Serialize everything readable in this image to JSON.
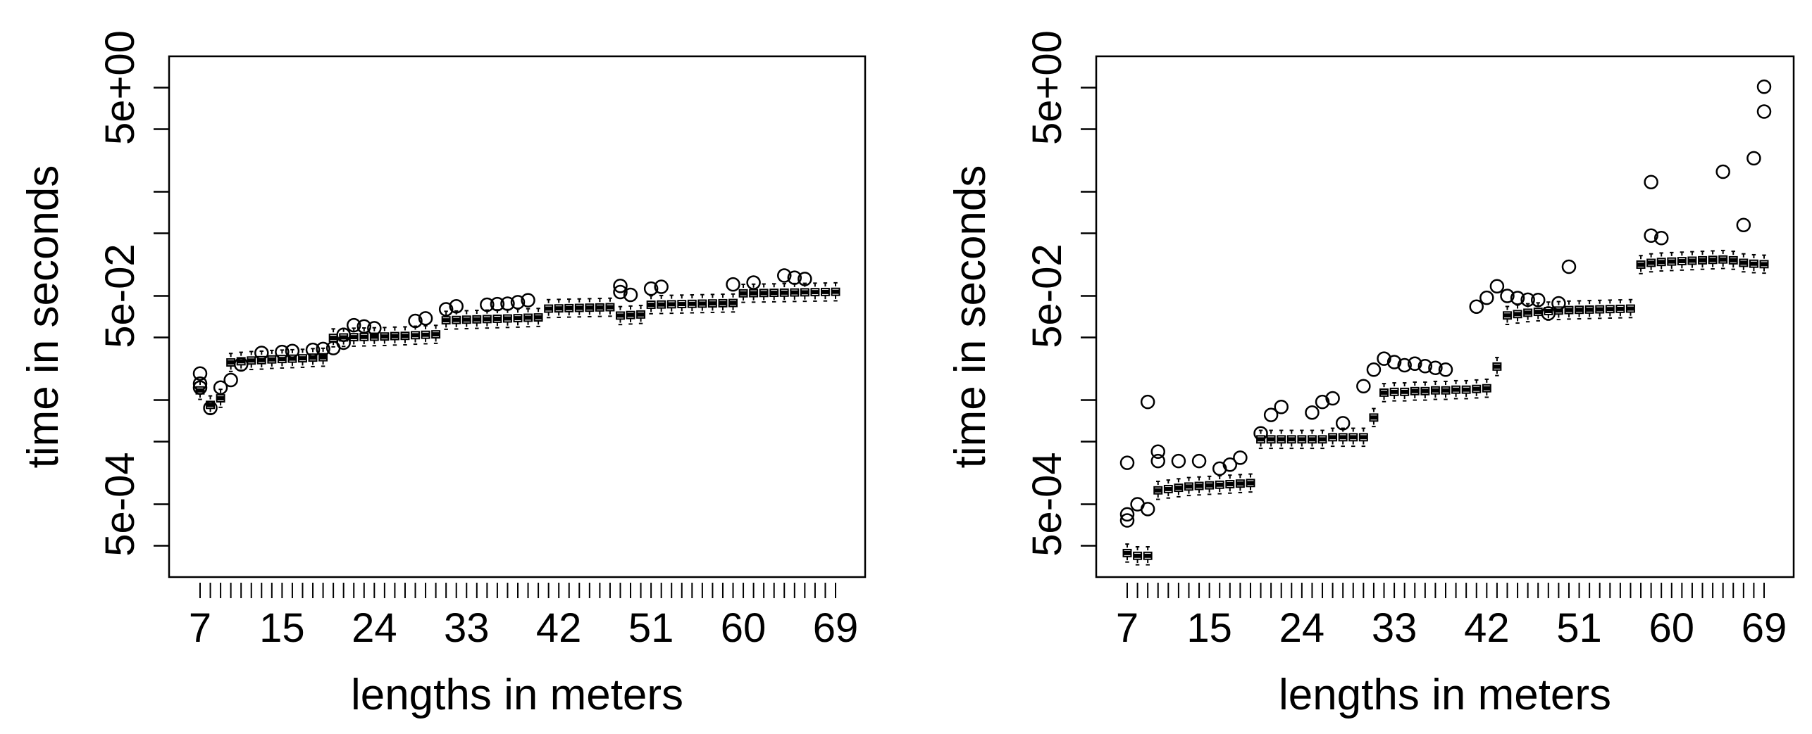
{
  "chart_data": [
    {
      "type": "boxplot",
      "xlabel": "lengths in meters",
      "ylabel": "time in seconds",
      "y_scale": "log10",
      "ylim": [
        0.0001,
        10
      ],
      "x_categories": [
        7,
        8,
        9,
        10,
        11,
        12,
        13,
        14,
        15,
        16,
        17,
        18,
        19,
        20,
        21,
        22,
        23,
        24,
        25,
        26,
        27,
        28,
        29,
        30,
        31,
        32,
        33,
        34,
        35,
        36,
        37,
        38,
        39,
        40,
        41,
        42,
        43,
        44,
        45,
        46,
        47,
        48,
        49,
        50,
        51,
        52,
        53,
        54,
        55,
        56,
        57,
        58,
        59,
        60,
        61,
        62,
        63,
        64,
        65,
        66,
        67,
        68,
        69
      ],
      "x_tick_labels": [
        "7",
        "15",
        "24",
        "33",
        "42",
        "51",
        "60",
        "69"
      ],
      "x_tick_values": [
        7,
        15,
        24,
        33,
        42,
        51,
        60,
        69
      ],
      "y_tick_labels": [
        "5e-04",
        "5e-02",
        "5e+00"
      ],
      "y_tick_values": [
        0.0005,
        0.05,
        5
      ],
      "y_minor_ticks": [
        0.0002,
        0.002,
        0.005,
        0.02,
        0.2,
        0.5,
        2
      ],
      "medians": [
        0.0062,
        0.0045,
        0.0052,
        0.0115,
        0.0118,
        0.012,
        0.0121,
        0.0123,
        0.0124,
        0.0125,
        0.0126,
        0.0128,
        0.0129,
        0.0198,
        0.02,
        0.0201,
        0.0202,
        0.0203,
        0.0204,
        0.0206,
        0.0207,
        0.021,
        0.0212,
        0.0214,
        0.0292,
        0.0294,
        0.0296,
        0.0298,
        0.03,
        0.0302,
        0.0304,
        0.0306,
        0.0309,
        0.0311,
        0.0378,
        0.038,
        0.0382,
        0.0384,
        0.0386,
        0.0388,
        0.039,
        0.0324,
        0.0328,
        0.0332,
        0.0412,
        0.0414,
        0.0416,
        0.0418,
        0.042,
        0.0422,
        0.0424,
        0.0426,
        0.0428,
        0.053,
        0.0532,
        0.0534,
        0.0536,
        0.0538,
        0.054,
        0.0542,
        0.0544,
        0.0546,
        0.0548
      ],
      "outliers": [
        [
          7,
          0.009
        ],
        [
          7,
          0.0072
        ],
        [
          7,
          0.0066
        ],
        [
          8,
          0.0042
        ],
        [
          9,
          0.0066
        ],
        [
          10,
          0.0078
        ],
        [
          11,
          0.011
        ],
        [
          13,
          0.0142
        ],
        [
          15,
          0.0145
        ],
        [
          16,
          0.0148
        ],
        [
          18,
          0.0152
        ],
        [
          19,
          0.0155
        ],
        [
          20,
          0.0158
        ],
        [
          21,
          0.0212
        ],
        [
          21,
          0.0178
        ],
        [
          22,
          0.0262
        ],
        [
          23,
          0.0255
        ],
        [
          24,
          0.0245
        ],
        [
          28,
          0.0288
        ],
        [
          29,
          0.0305
        ],
        [
          31,
          0.0372
        ],
        [
          32,
          0.0398
        ],
        [
          35,
          0.0412
        ],
        [
          36,
          0.0418
        ],
        [
          37,
          0.0422
        ],
        [
          38,
          0.0436
        ],
        [
          39,
          0.0455
        ],
        [
          48,
          0.0545
        ],
        [
          48,
          0.0625
        ],
        [
          49,
          0.0512
        ],
        [
          51,
          0.0588
        ],
        [
          52,
          0.0612
        ],
        [
          59,
          0.0645
        ],
        [
          61,
          0.0672
        ],
        [
          64,
          0.0785
        ],
        [
          65,
          0.0748
        ],
        [
          66,
          0.0728
        ]
      ]
    },
    {
      "type": "boxplot",
      "xlabel": "lengths in meters",
      "ylabel": "time in seconds",
      "y_scale": "log10",
      "ylim": [
        0.0001,
        10
      ],
      "x_categories": [
        7,
        8,
        9,
        10,
        11,
        12,
        13,
        14,
        15,
        16,
        17,
        18,
        19,
        20,
        21,
        22,
        23,
        24,
        25,
        26,
        27,
        28,
        29,
        30,
        31,
        32,
        33,
        34,
        35,
        36,
        37,
        38,
        39,
        40,
        41,
        42,
        43,
        44,
        45,
        46,
        47,
        48,
        49,
        50,
        51,
        52,
        53,
        54,
        55,
        56,
        57,
        58,
        59,
        60,
        61,
        62,
        63,
        64,
        65,
        66,
        67,
        68,
        69
      ],
      "x_tick_labels": [
        "7",
        "15",
        "24",
        "33",
        "42",
        "51",
        "60",
        "69"
      ],
      "x_tick_values": [
        7,
        15,
        24,
        33,
        42,
        51,
        60,
        69
      ],
      "y_tick_labels": [
        "5e-04",
        "5e-02",
        "5e+00"
      ],
      "y_tick_values": [
        0.0005,
        0.05,
        5
      ],
      "y_minor_ticks": [
        0.0002,
        0.002,
        0.005,
        0.02,
        0.2,
        0.5,
        2
      ],
      "medians": [
        0.00017,
        0.00016,
        0.00016,
        0.00068,
        0.0007,
        0.00072,
        0.00074,
        0.00075,
        0.00076,
        0.00077,
        0.00078,
        0.00079,
        0.0008,
        0.0021,
        0.0021,
        0.0021,
        0.0021,
        0.0021,
        0.0021,
        0.0021,
        0.0022,
        0.0022,
        0.0022,
        0.0022,
        0.0034,
        0.0059,
        0.006,
        0.006,
        0.0061,
        0.0061,
        0.0062,
        0.0062,
        0.0063,
        0.0063,
        0.0064,
        0.0065,
        0.0105,
        0.0325,
        0.0335,
        0.0345,
        0.0352,
        0.0358,
        0.0362,
        0.0366,
        0.0368,
        0.037,
        0.0372,
        0.0374,
        0.0376,
        0.0378,
        0.1,
        0.104,
        0.106,
        0.107,
        0.108,
        0.109,
        0.11,
        0.111,
        0.112,
        0.11,
        0.104,
        0.102,
        0.101
      ],
      "outliers": [
        [
          7,
          0.00125
        ],
        [
          7,
          0.0004
        ],
        [
          7,
          0.00035
        ],
        [
          8,
          0.0005
        ],
        [
          9,
          0.0048
        ],
        [
          9,
          0.00045
        ],
        [
          10,
          0.0016
        ],
        [
          10,
          0.0013
        ],
        [
          12,
          0.0013
        ],
        [
          14,
          0.0013
        ],
        [
          16,
          0.0011
        ],
        [
          17,
          0.0012
        ],
        [
          18,
          0.0014
        ],
        [
          20,
          0.0024
        ],
        [
          21,
          0.0036
        ],
        [
          22,
          0.0043
        ],
        [
          25,
          0.0038
        ],
        [
          26,
          0.0048
        ],
        [
          27,
          0.0052
        ],
        [
          28,
          0.003
        ],
        [
          30,
          0.0068
        ],
        [
          31,
          0.0098
        ],
        [
          32,
          0.0125
        ],
        [
          33,
          0.0116
        ],
        [
          34,
          0.0108
        ],
        [
          35,
          0.0112
        ],
        [
          36,
          0.0106
        ],
        [
          37,
          0.0102
        ],
        [
          38,
          0.0098
        ],
        [
          41,
          0.0395
        ],
        [
          42,
          0.048
        ],
        [
          43,
          0.062
        ],
        [
          44,
          0.05
        ],
        [
          45,
          0.0478
        ],
        [
          46,
          0.046
        ],
        [
          47,
          0.0458
        ],
        [
          48,
          0.034
        ],
        [
          49,
          0.0425
        ],
        [
          50,
          0.0955
        ],
        [
          58,
          0.62
        ],
        [
          58,
          0.19
        ],
        [
          59,
          0.18
        ],
        [
          65,
          0.78
        ],
        [
          67,
          0.24
        ],
        [
          68,
          1.05
        ],
        [
          69,
          2.95
        ],
        [
          69,
          5.1
        ]
      ]
    }
  ]
}
